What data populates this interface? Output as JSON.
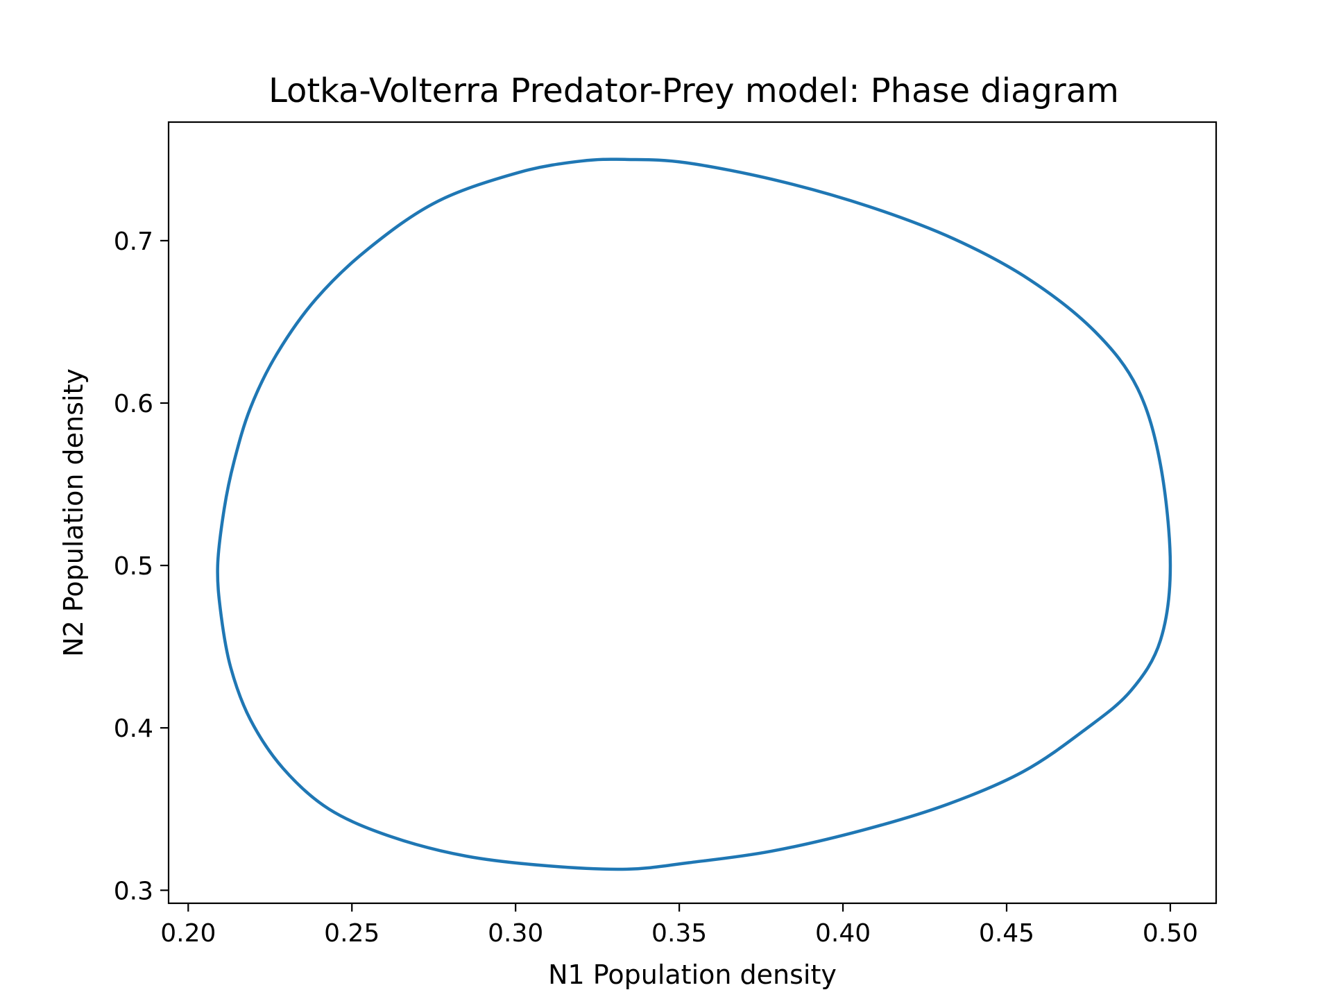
{
  "chart_data": {
    "type": "line",
    "title": "Lotka-Volterra Predator-Prey model: Phase diagram",
    "xlabel": "N1 Population density",
    "ylabel": "N2 Population density",
    "xlim": [
      0.194,
      0.514
    ],
    "ylim": [
      0.292,
      0.773
    ],
    "xticks": [
      0.2,
      0.25,
      0.3,
      0.35,
      0.4,
      0.45,
      0.5
    ],
    "xtick_labels": [
      "0.20",
      "0.25",
      "0.30",
      "0.35",
      "0.40",
      "0.45",
      "0.50"
    ],
    "yticks": [
      0.3,
      0.4,
      0.5,
      0.6,
      0.7
    ],
    "ytick_labels": [
      "0.3",
      "0.4",
      "0.5",
      "0.6",
      "0.7"
    ],
    "grid": false,
    "series": [
      {
        "color": "#1f77b4",
        "closed": true,
        "x": [
          0.5,
          0.497,
          0.488,
          0.474,
          0.455,
          0.432,
          0.406,
          0.378,
          0.353,
          0.334,
          0.31,
          0.285,
          0.262,
          0.243,
          0.229,
          0.219,
          0.213,
          0.21,
          0.209,
          0.211,
          0.214,
          0.219,
          0.227,
          0.239,
          0.255,
          0.276,
          0.301,
          0.32,
          0.334,
          0.352,
          0.38,
          0.408,
          0.434,
          0.457,
          0.477,
          0.49,
          0.497,
          0.5
        ],
        "y": [
          0.5,
          0.454,
          0.423,
          0.399,
          0.373,
          0.353,
          0.337,
          0.324,
          0.317,
          0.313,
          0.315,
          0.321,
          0.333,
          0.35,
          0.375,
          0.405,
          0.437,
          0.47,
          0.5,
          0.535,
          0.564,
          0.597,
          0.63,
          0.664,
          0.695,
          0.724,
          0.742,
          0.749,
          0.75,
          0.748,
          0.737,
          0.721,
          0.701,
          0.676,
          0.644,
          0.609,
          0.562,
          0.5
        ]
      }
    ]
  }
}
